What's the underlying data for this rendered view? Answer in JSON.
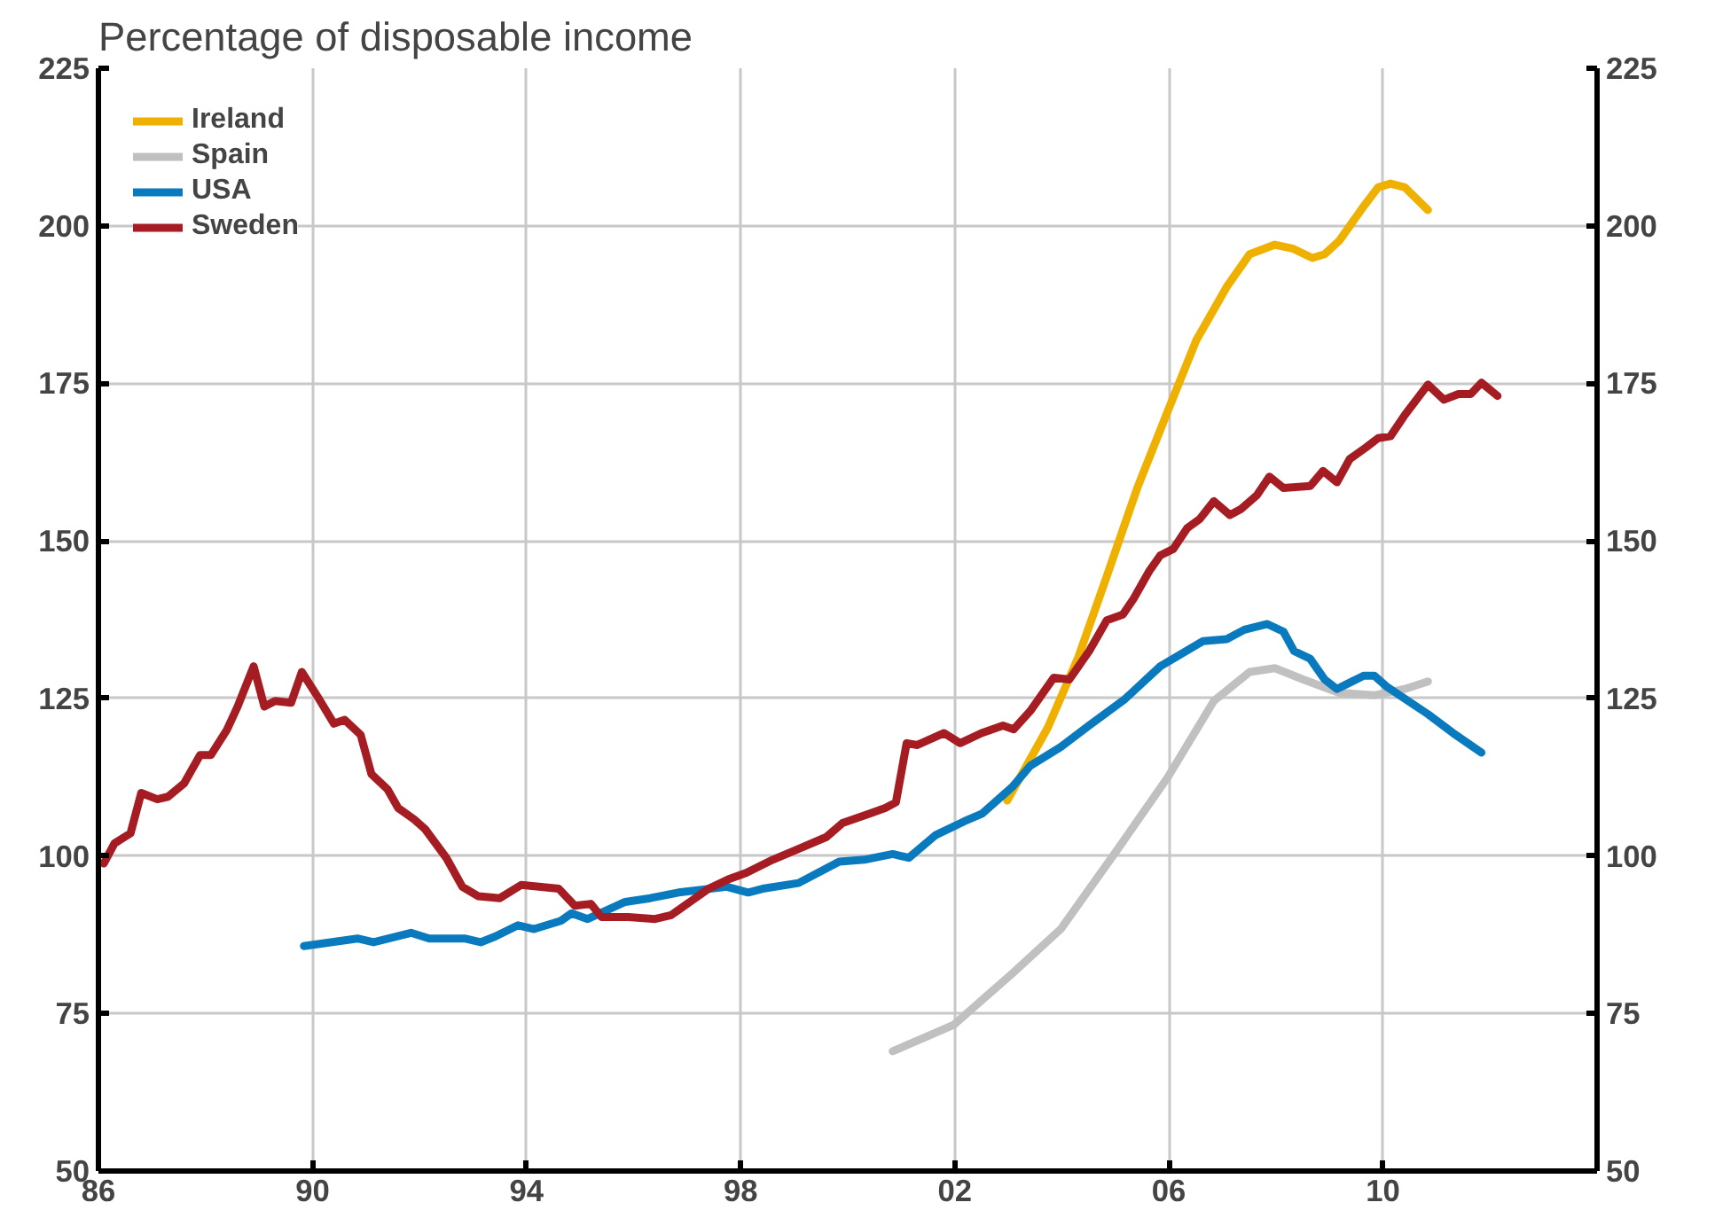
{
  "chart_data": {
    "type": "line",
    "title": "Percentage of disposable income",
    "xlim": [
      1986,
      2014
    ],
    "xticks": [
      {
        "value": 1986,
        "label": "86"
      },
      {
        "value": 1990,
        "label": "90"
      },
      {
        "value": 1994,
        "label": "94"
      },
      {
        "value": 1998,
        "label": "98"
      },
      {
        "value": 2002,
        "label": "02"
      },
      {
        "value": 2006,
        "label": "06"
      },
      {
        "value": 2010,
        "label": "10"
      }
    ],
    "ylim": [
      50,
      225
    ],
    "yticks": [
      50,
      75,
      100,
      125,
      150,
      175,
      200,
      225
    ],
    "y2lim": [
      50,
      225
    ],
    "y2ticks": [
      50,
      75,
      100,
      125,
      150,
      175,
      200,
      225
    ],
    "grid": true,
    "legend": "top left",
    "line_style": "solid",
    "series": [
      {
        "name": "Ireland",
        "color": "#f0b000",
        "x": [
          2002.98,
          2003.74,
          2004.31,
          2004.84,
          2005.41,
          2005.98,
          2006.51,
          2007.08,
          2007.51,
          2007.98,
          2008.31,
          2008.68,
          2008.91,
          2009.18,
          2009.64,
          2009.91,
          2010.14,
          2010.41,
          2010.84
        ],
        "values": [
          108.8,
          120.4,
          131.6,
          144.4,
          158.4,
          170.6,
          181.8,
          190.3,
          195.5,
          197,
          196.4,
          194.9,
          195.5,
          197.6,
          203.1,
          206.1,
          206.7,
          206.1,
          202.5
        ]
      },
      {
        "name": "Spain",
        "color": "#c0c0c0",
        "x": [
          2000.84,
          2001.98,
          2003.08,
          2003.98,
          2004.98,
          2005.98,
          2006.84,
          2007.51,
          2007.98,
          2008.51,
          2009.18,
          2009.84,
          2010.41,
          2010.84
        ],
        "values": [
          69,
          73.2,
          81.4,
          88.4,
          100.3,
          112.5,
          124.6,
          129.2,
          129.8,
          128,
          125.9,
          125.5,
          126.5,
          127.7
        ]
      },
      {
        "name": "USA",
        "color": "#0a7abf",
        "x": [
          1989.84,
          1990.84,
          1991.14,
          1991.84,
          1992.18,
          1992.84,
          1993.14,
          1993.41,
          1993.84,
          1994.14,
          1994.64,
          1994.84,
          1995.14,
          1995.84,
          1996.31,
          1996.84,
          1997.74,
          1998.14,
          1998.41,
          1999.08,
          1999.84,
          2000.31,
          2000.84,
          2001.14,
          2001.64,
          2002.18,
          2002.51,
          2003.08,
          2003.41,
          2003.98,
          2004.51,
          2005.18,
          2005.84,
          2006.64,
          2007.08,
          2007.41,
          2007.84,
          2008.14,
          2008.34,
          2008.64,
          2008.91,
          2009.14,
          2009.64,
          2009.84,
          2010.08,
          2010.84,
          2011.31,
          2011.84
        ],
        "values": [
          85.7,
          86.9,
          86.3,
          87.8,
          86.9,
          86.9,
          86.3,
          87.2,
          89,
          88.4,
          89.7,
          90.9,
          90,
          92.7,
          93.3,
          94.2,
          95.1,
          94.2,
          94.8,
          95.7,
          99.1,
          99.4,
          100.3,
          99.7,
          103.3,
          105.5,
          106.7,
          111,
          114.3,
          117.3,
          120.7,
          124.9,
          130.1,
          134.1,
          134.4,
          135.9,
          136.8,
          135.6,
          132.5,
          131.3,
          128,
          126.5,
          128.6,
          128.6,
          126.8,
          122.5,
          119.5,
          116.4
        ]
      },
      {
        "name": "Sweden",
        "color": "#a51d23",
        "x": [
          1986.1,
          1986.3,
          1986.6,
          1986.8,
          1987.1,
          1987.3,
          1987.6,
          1987.9,
          1988.1,
          1988.4,
          1988.6,
          1988.9,
          1989.1,
          1989.3,
          1989.6,
          1989.8,
          1990.1,
          1990.4,
          1990.6,
          1990.9,
          1991.1,
          1991.4,
          1991.6,
          1991.9,
          1992.1,
          1992.5,
          1992.8,
          1993.1,
          1993.5,
          1993.9,
          1994.6,
          1994.9,
          1995.2,
          1995.4,
          1995.9,
          1996.4,
          1996.7,
          1997.1,
          1997.4,
          1997.8,
          1998.1,
          1998.6,
          1999.1,
          1999.6,
          1999.9,
          2000.4,
          2000.7,
          2000.9,
          2001.1,
          2001.3,
          2001.8,
          2002.1,
          2002.5,
          2002.9,
          2003.1,
          2003.41,
          2003.85,
          2004.14,
          2004.51,
          2004.84,
          2005.14,
          2005.34,
          2005.64,
          2005.84,
          2006.08,
          2006.34,
          2006.58,
          2006.84,
          2007.14,
          2007.34,
          2007.64,
          2007.88,
          2008.14,
          2008.64,
          2008.88,
          2009.14,
          2009.38,
          2009.68,
          2009.91,
          2010.14,
          2010.41,
          2010.84,
          2011.14,
          2011.41,
          2011.64,
          2011.84,
          2012.14
        ],
        "values": [
          98.8,
          102,
          103.6,
          110,
          109,
          109.4,
          111.5,
          116,
          116,
          120,
          123.7,
          130.1,
          123.7,
          124.6,
          124.3,
          129.2,
          125.2,
          121,
          121.6,
          119.2,
          113,
          110.6,
          107.6,
          105.8,
          104.3,
          99.7,
          95.1,
          93.6,
          93.3,
          95.4,
          94.8,
          92.1,
          92.4,
          90.3,
          90.3,
          90,
          90.6,
          93,
          94.8,
          96.4,
          97.3,
          99.4,
          101.2,
          103,
          105.2,
          106.7,
          107.6,
          108.5,
          117.9,
          117.6,
          119.5,
          117.9,
          119.5,
          120.7,
          120.1,
          123,
          128.3,
          128,
          132.5,
          137.4,
          138.3,
          140.8,
          145.3,
          147.7,
          148.7,
          152,
          153.5,
          156.3,
          154.1,
          155,
          157.2,
          160.2,
          158.4,
          158.7,
          161.1,
          159.3,
          163,
          164.8,
          166.3,
          166.6,
          170,
          174.8,
          172.4,
          173.3,
          173.3,
          175.1,
          173
        ]
      }
    ]
  }
}
